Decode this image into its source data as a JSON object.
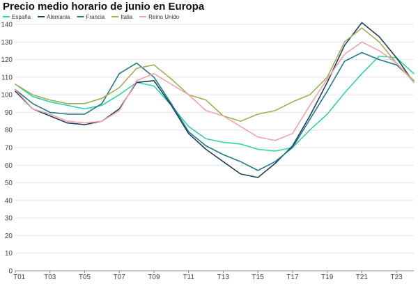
{
  "chart_data": {
    "type": "line",
    "title": "Precio medio horario de junio en Europa",
    "xlabel": "",
    "ylabel": "",
    "ylim": [
      0,
      140
    ],
    "yticks": [
      0,
      10,
      20,
      30,
      40,
      50,
      60,
      70,
      80,
      90,
      100,
      110,
      120,
      130,
      140
    ],
    "x": [
      "T01",
      "T02",
      "T03",
      "T04",
      "T05",
      "T06",
      "T07",
      "T08",
      "T09",
      "T10",
      "T11",
      "T12",
      "T13",
      "T14",
      "T15",
      "T16",
      "T17",
      "T18",
      "T19",
      "T20",
      "T21",
      "T22",
      "T23",
      "T24"
    ],
    "xtick_labels": [
      "T01",
      "T03",
      "T05",
      "T07",
      "T09",
      "T11",
      "T13",
      "T15",
      "T17",
      "T19",
      "T21",
      "T23"
    ],
    "grid": true,
    "legend_position": "top-left",
    "series": [
      {
        "name": "España",
        "color": "#2ed3a6",
        "values": [
          106,
          99,
          96,
          94,
          92,
          94,
          100,
          107,
          105,
          94,
          82,
          75,
          73,
          72,
          69,
          68,
          70,
          80,
          89,
          101,
          112,
          122,
          121,
          112
        ]
      },
      {
        "name": "Alemania",
        "color": "#1d3f5e",
        "values": [
          102,
          92,
          88,
          84,
          83,
          85,
          92,
          107,
          108,
          94,
          78,
          69,
          62,
          55,
          53,
          61,
          71,
          88,
          107,
          128,
          141,
          133,
          121,
          107
        ]
      },
      {
        "name": "Francia",
        "color": "#1f7a8c",
        "values": [
          103,
          95,
          90,
          89,
          89,
          95,
          112,
          118,
          110,
          95,
          79,
          71,
          66,
          62,
          57,
          62,
          70,
          86,
          102,
          119,
          124,
          120,
          117,
          108
        ]
      },
      {
        "name": "Italia",
        "color": "#a3ad5a",
        "values": [
          106,
          100,
          97,
          95,
          95,
          98,
          104,
          115,
          117,
          109,
          100,
          97,
          88,
          85,
          89,
          91,
          96,
          100,
          110,
          130,
          138,
          130,
          118,
          108
        ]
      },
      {
        "name": "Reino Unido",
        "color": "#f4a3a8",
        "values": [
          103,
          92,
          89,
          85,
          84,
          85,
          91,
          108,
          112,
          106,
          100,
          91,
          88,
          82,
          76,
          74,
          78,
          94,
          109,
          123,
          130,
          125,
          118,
          107
        ]
      }
    ]
  }
}
